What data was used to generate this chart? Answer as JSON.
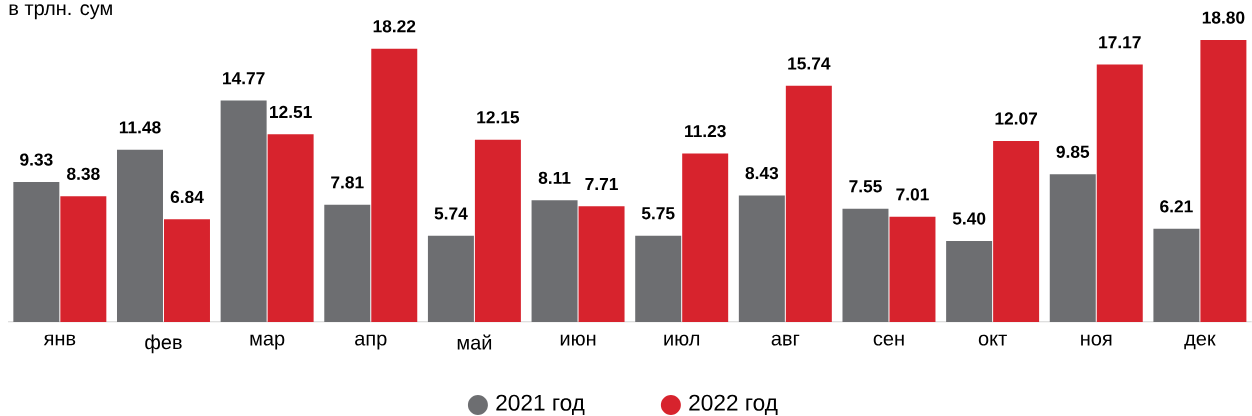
{
  "chart_data": {
    "type": "bar",
    "ylabel": "в трлн. сум",
    "categories": [
      "янв",
      "фев",
      "мар",
      "апр",
      "май",
      "июн",
      "июл",
      "авг",
      "сен",
      "окт",
      "ноя",
      "дек"
    ],
    "legend": "bottom",
    "series": [
      {
        "name": "2021 год",
        "color": "#6d6e71",
        "values": [
          9.33,
          11.48,
          14.77,
          7.81,
          5.74,
          8.11,
          5.75,
          8.43,
          7.55,
          5.4,
          9.85,
          6.21
        ],
        "value_labels": [
          "9.33",
          "11.48",
          "14.77",
          "7.81",
          "5.74",
          "8.11",
          "5.75",
          "8.43",
          "7.55",
          "5.40",
          "9.85",
          "6.21"
        ]
      },
      {
        "name": "2022 год",
        "color": "#d7232d",
        "values": [
          8.38,
          6.84,
          12.51,
          18.22,
          12.15,
          7.71,
          11.23,
          15.74,
          7.01,
          12.07,
          17.17,
          18.8
        ],
        "value_labels": [
          "8.38",
          "6.84",
          "12.51",
          "18.22",
          "12.15",
          "7.71",
          "11.23",
          "15.74",
          "7.01",
          "12.07",
          "17.17",
          "18.80"
        ]
      }
    ]
  }
}
